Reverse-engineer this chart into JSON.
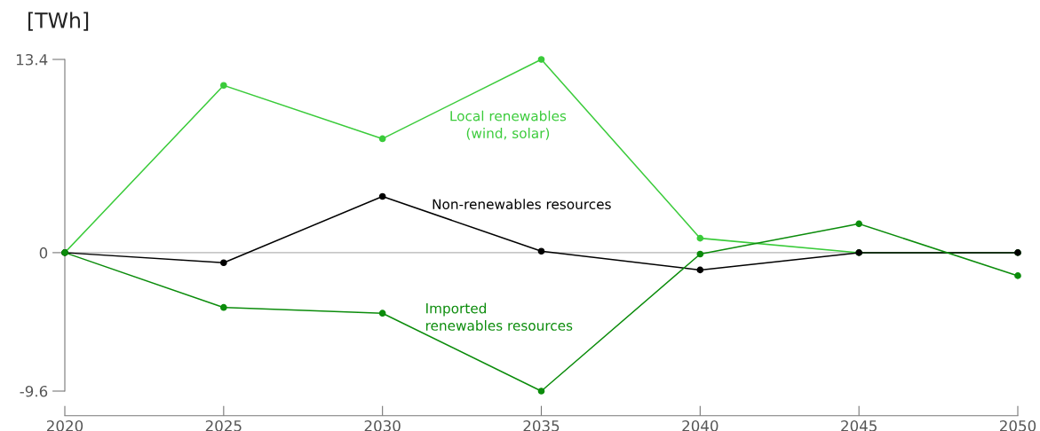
{
  "chart_data": {
    "type": "line",
    "subtitle": "[TWh]",
    "x": [
      2020,
      2025,
      2030,
      2035,
      2040,
      2045,
      2050
    ],
    "series": [
      {
        "name": "Local renewables\n(wind, solar)",
        "color": "#3acb3a",
        "values": [
          0,
          11.6,
          7.9,
          13.4,
          1.0,
          0,
          0
        ]
      },
      {
        "name": "Non-renewables resources",
        "color": "#000000",
        "values": [
          0,
          -0.7,
          3.9,
          0.1,
          -1.2,
          0,
          0
        ]
      },
      {
        "name": "Imported\nrenewables resources",
        "color": "#0b8c0b",
        "values": [
          0,
          -3.8,
          -4.2,
          -9.6,
          -0.1,
          2.0,
          -1.6
        ]
      }
    ],
    "xlim": [
      2020,
      2050
    ],
    "xticks": [
      2020,
      2025,
      2030,
      2035,
      2040,
      2045,
      2050
    ],
    "ylim": [
      -9.6,
      13.4
    ],
    "yticks": [
      -9.6,
      0,
      13.4
    ],
    "ref_lines": [
      {
        "axis": "y",
        "value": 0,
        "color": "#b3b3b3"
      }
    ],
    "grid": false,
    "legend": false,
    "marker": "circle",
    "line_style": "solid"
  }
}
